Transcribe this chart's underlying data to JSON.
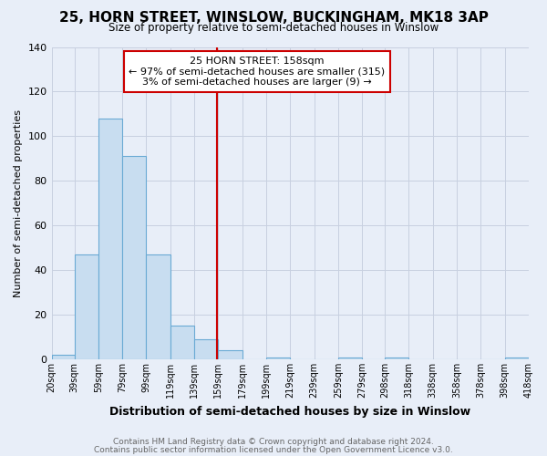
{
  "title": "25, HORN STREET, WINSLOW, BUCKINGHAM, MK18 3AP",
  "subtitle": "Size of property relative to semi-detached houses in Winslow",
  "xlabel": "Distribution of semi-detached houses by size in Winslow",
  "ylabel": "Number of semi-detached properties",
  "bin_edges": [
    20,
    39,
    59,
    79,
    99,
    119,
    139,
    159,
    179,
    199,
    219,
    239,
    259,
    279,
    298,
    318,
    338,
    358,
    378,
    398,
    418
  ],
  "bar_heights": [
    2,
    47,
    108,
    91,
    47,
    15,
    9,
    4,
    0,
    1,
    0,
    0,
    1,
    0,
    1,
    0,
    0,
    0,
    0,
    1
  ],
  "bar_color": "#c8ddf0",
  "bar_edge_color": "#6aaad4",
  "vline_x": 158,
  "vline_color": "#cc0000",
  "ylim": [
    0,
    140
  ],
  "yticks": [
    0,
    20,
    40,
    60,
    80,
    100,
    120,
    140
  ],
  "annotation_title": "25 HORN STREET: 158sqm",
  "annotation_line1": "← 97% of semi-detached houses are smaller (315)",
  "annotation_line2": "3% of semi-detached houses are larger (9) →",
  "annotation_box_color": "#ffffff",
  "annotation_box_edge": "#cc0000",
  "footer_line1": "Contains HM Land Registry data © Crown copyright and database right 2024.",
  "footer_line2": "Contains public sector information licensed under the Open Government Licence v3.0.",
  "background_color": "#e8eef8",
  "grid_color": "#c8d0e0",
  "title_fontsize": 11,
  "subtitle_fontsize": 8.5,
  "ylabel_fontsize": 8,
  "xlabel_fontsize": 9
}
